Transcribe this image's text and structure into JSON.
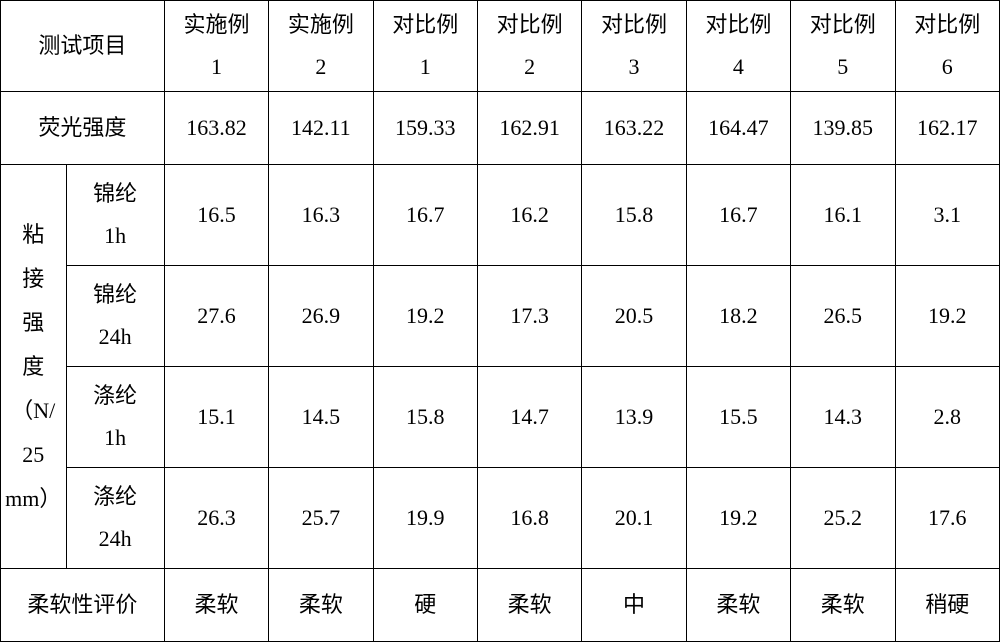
{
  "table": {
    "type": "table",
    "colors": {
      "border": "#000000",
      "background": "#ffffff",
      "text": "#000000"
    },
    "font": {
      "family": "SimSun",
      "size_pt": 16
    },
    "header": {
      "test_item": "测试项目",
      "columns": [
        {
          "l1": "实施例",
          "l2": "1"
        },
        {
          "l1": "实施例",
          "l2": "2"
        },
        {
          "l1": "对比例",
          "l2": "1"
        },
        {
          "l1": "对比例",
          "l2": "2"
        },
        {
          "l1": "对比例",
          "l2": "3"
        },
        {
          "l1": "对比例",
          "l2": "4"
        },
        {
          "l1": "对比例",
          "l2": "5"
        },
        {
          "l1": "对比例",
          "l2": "6"
        }
      ]
    },
    "rows": {
      "fluorescence": {
        "label": "荧光强度",
        "values": [
          "163.82",
          "142.11",
          "159.33",
          "162.91",
          "163.22",
          "164.47",
          "139.85",
          "162.17"
        ]
      },
      "adhesion": {
        "group_label_top": "粘接强度",
        "group_label_bottom_l1": "（N/",
        "group_label_bottom_l2": "25",
        "group_label_bottom_l3": "mm）",
        "subrows": [
          {
            "l1": "锦纶",
            "l2": "1h",
            "values": [
              "16.5",
              "16.3",
              "16.7",
              "16.2",
              "15.8",
              "16.7",
              "16.1",
              "3.1"
            ]
          },
          {
            "l1": "锦纶",
            "l2": "24h",
            "values": [
              "27.6",
              "26.9",
              "19.2",
              "17.3",
              "20.5",
              "18.2",
              "26.5",
              "19.2"
            ]
          },
          {
            "l1": "涤纶",
            "l2": "1h",
            "values": [
              "15.1",
              "14.5",
              "15.8",
              "14.7",
              "13.9",
              "15.5",
              "14.3",
              "2.8"
            ]
          },
          {
            "l1": "涤纶",
            "l2": "24h",
            "values": [
              "26.3",
              "25.7",
              "19.9",
              "16.8",
              "20.1",
              "19.2",
              "25.2",
              "17.6"
            ]
          }
        ]
      },
      "softness": {
        "label": "柔软性评价",
        "values": [
          "柔软",
          "柔软",
          "硬",
          "柔软",
          "中",
          "柔软",
          "柔软",
          "稍硬"
        ]
      }
    }
  }
}
